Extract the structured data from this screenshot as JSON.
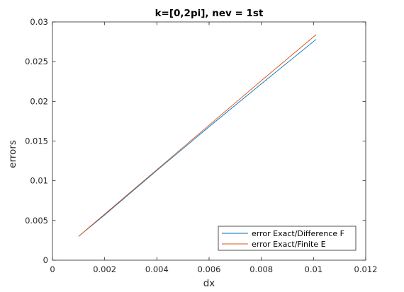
{
  "chart_data": {
    "type": "line",
    "title": "k=[0,2pi], nev = 1st",
    "xlabel": "dx",
    "ylabel": "errors",
    "xlim": [
      0,
      0.012
    ],
    "ylim": [
      0,
      0.03
    ],
    "xticks": [
      0,
      0.002,
      0.004,
      0.006,
      0.008,
      0.01,
      0.012
    ],
    "xtick_labels": [
      "0",
      "0.002",
      "0.004",
      "0.006",
      "0.008",
      "0.01",
      "0.012"
    ],
    "yticks": [
      0,
      0.005,
      0.01,
      0.015,
      0.02,
      0.025,
      0.03
    ],
    "ytick_labels": [
      "0",
      "0.005",
      "0.01",
      "0.015",
      "0.02",
      "0.025",
      "0.03"
    ],
    "grid": false,
    "legend_position": "bottom-right",
    "series": [
      {
        "name": "error Exact/Difference F",
        "color": "#0072BD",
        "x": [
          0.001,
          0.002,
          0.004,
          0.006,
          0.008,
          0.0101
        ],
        "y": [
          0.003,
          0.0057,
          0.0113,
          0.0168,
          0.0222,
          0.0278
        ]
      },
      {
        "name": "error Exact/Finite E",
        "color": "#D95319",
        "x": [
          0.001,
          0.002,
          0.004,
          0.006,
          0.008,
          0.0101
        ],
        "y": [
          0.003,
          0.0058,
          0.0114,
          0.017,
          0.0226,
          0.0284
        ]
      }
    ]
  }
}
